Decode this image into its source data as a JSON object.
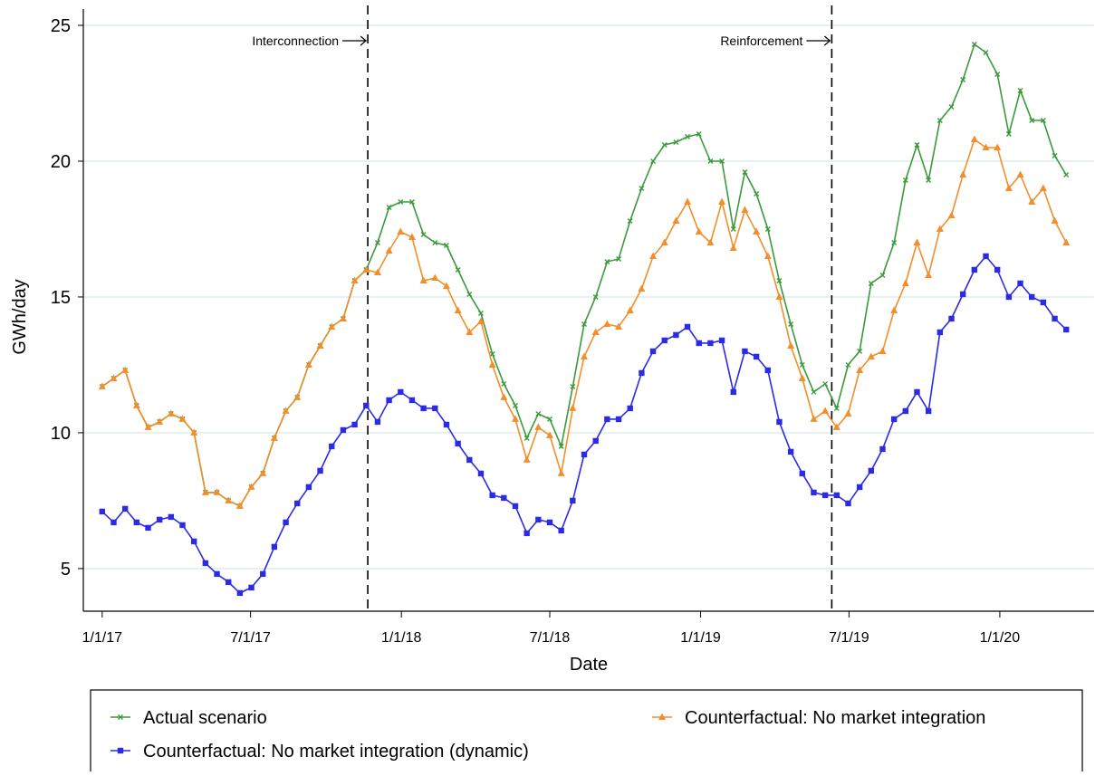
{
  "chart_data": {
    "type": "line",
    "x_label": "Date",
    "y_label": "GWh/day",
    "x": [
      "2017-01-01",
      "2017-01-15",
      "2017-01-29",
      "2017-02-12",
      "2017-02-26",
      "2017-03-12",
      "2017-03-26",
      "2017-04-09",
      "2017-04-23",
      "2017-05-07",
      "2017-05-21",
      "2017-06-04",
      "2017-06-18",
      "2017-07-02",
      "2017-07-16",
      "2017-07-30",
      "2017-08-13",
      "2017-08-27",
      "2017-09-10",
      "2017-09-24",
      "2017-10-08",
      "2017-10-22",
      "2017-11-05",
      "2017-11-19",
      "2017-12-03",
      "2017-12-17",
      "2017-12-31",
      "2018-01-14",
      "2018-01-28",
      "2018-02-11",
      "2018-02-25",
      "2018-03-11",
      "2018-03-25",
      "2018-04-08",
      "2018-04-22",
      "2018-05-06",
      "2018-05-20",
      "2018-06-03",
      "2018-06-17",
      "2018-07-01",
      "2018-07-15",
      "2018-07-29",
      "2018-08-12",
      "2018-08-26",
      "2018-09-09",
      "2018-09-23",
      "2018-10-07",
      "2018-10-21",
      "2018-11-04",
      "2018-11-18",
      "2018-12-02",
      "2018-12-16",
      "2018-12-30",
      "2019-01-13",
      "2019-01-27",
      "2019-02-10",
      "2019-02-24",
      "2019-03-10",
      "2019-03-24",
      "2019-04-07",
      "2019-04-21",
      "2019-05-05",
      "2019-05-19",
      "2019-06-02",
      "2019-06-16",
      "2019-06-30",
      "2019-07-14",
      "2019-07-28",
      "2019-08-11",
      "2019-08-25",
      "2019-09-08",
      "2019-09-22",
      "2019-10-06",
      "2019-10-20",
      "2019-11-03",
      "2019-11-17",
      "2019-12-01",
      "2019-12-15",
      "2019-12-29",
      "2020-01-12",
      "2020-01-26",
      "2020-02-09",
      "2020-02-23",
      "2020-03-08",
      "2020-03-22"
    ],
    "series": [
      {
        "name": "Actual scenario",
        "color": "#3a9a3a",
        "marker": "cross",
        "values": [
          11.7,
          12.0,
          12.3,
          11.0,
          10.2,
          10.4,
          10.7,
          10.5,
          10.0,
          7.8,
          7.8,
          7.5,
          7.3,
          8.0,
          8.5,
          9.8,
          10.8,
          11.3,
          12.5,
          13.2,
          13.9,
          14.2,
          15.6,
          16.0,
          17.0,
          18.3,
          18.5,
          18.5,
          17.3,
          17.0,
          16.9,
          16.0,
          15.1,
          14.4,
          12.9,
          11.8,
          11.0,
          9.8,
          10.7,
          10.5,
          9.5,
          11.7,
          14.0,
          15.0,
          16.3,
          16.4,
          17.8,
          19.0,
          20.0,
          20.6,
          20.7,
          20.9,
          21.0,
          20.0,
          20.0,
          17.5,
          19.6,
          18.8,
          17.5,
          15.6,
          14.0,
          12.5,
          11.5,
          11.8,
          10.9,
          12.5,
          13.0,
          15.5,
          15.8,
          17.0,
          19.3,
          20.6,
          19.3,
          21.5,
          22.0,
          23.0,
          24.3,
          24.0,
          23.2,
          21.0,
          22.6,
          21.5,
          21.5,
          20.2,
          19.5
        ]
      },
      {
        "name": "Counterfactual: No market integration",
        "color": "#f28e2b",
        "marker": "triangle",
        "values": [
          11.7,
          12.0,
          12.3,
          11.0,
          10.2,
          10.4,
          10.7,
          10.5,
          10.0,
          7.8,
          7.8,
          7.5,
          7.3,
          8.0,
          8.5,
          9.8,
          10.8,
          11.3,
          12.5,
          13.2,
          13.9,
          14.2,
          15.6,
          16.0,
          15.9,
          16.7,
          17.4,
          17.2,
          15.6,
          15.7,
          15.4,
          14.5,
          13.7,
          14.1,
          12.5,
          11.3,
          10.5,
          9.0,
          10.2,
          9.9,
          8.5,
          10.9,
          12.8,
          13.7,
          14.0,
          13.9,
          14.5,
          15.3,
          16.5,
          17.0,
          17.8,
          18.5,
          17.4,
          17.0,
          18.5,
          16.8,
          18.2,
          17.4,
          16.5,
          15.0,
          13.2,
          12.0,
          10.5,
          10.8,
          10.2,
          10.7,
          12.3,
          12.8,
          13.0,
          14.5,
          15.5,
          17.0,
          15.8,
          17.5,
          18.0,
          19.5,
          20.8,
          20.5,
          20.5,
          19.0,
          19.5,
          18.5,
          19.0,
          17.8,
          17.0
        ]
      },
      {
        "name": "Counterfactual: No market integration (dynamic)",
        "color": "#2b2be6",
        "marker": "square",
        "values": [
          7.1,
          6.7,
          7.2,
          6.7,
          6.5,
          6.8,
          6.9,
          6.6,
          6.0,
          5.2,
          4.8,
          4.5,
          4.1,
          4.3,
          4.8,
          5.8,
          6.7,
          7.4,
          8.0,
          8.6,
          9.5,
          10.1,
          10.3,
          11.0,
          10.4,
          11.2,
          11.5,
          11.2,
          10.9,
          10.9,
          10.3,
          9.6,
          9.0,
          8.5,
          7.7,
          7.6,
          7.3,
          6.3,
          6.8,
          6.7,
          6.4,
          7.5,
          9.2,
          9.7,
          10.5,
          10.5,
          10.9,
          12.2,
          13.0,
          13.4,
          13.6,
          13.9,
          13.3,
          13.3,
          13.4,
          11.5,
          13.0,
          12.8,
          12.3,
          10.4,
          9.3,
          8.5,
          7.8,
          7.7,
          7.7,
          7.4,
          8.0,
          8.6,
          9.4,
          10.5,
          10.8,
          11.5,
          10.8,
          13.7,
          14.2,
          15.1,
          16.0,
          16.5,
          16.0,
          15.0,
          15.5,
          15.0,
          14.8,
          14.2,
          13.8
        ]
      }
    ],
    "xlim": [
      "2016-12-09",
      "2020-04-25"
    ],
    "xticks": [
      {
        "value": "2017-01-01",
        "label": "1/1/17"
      },
      {
        "value": "2017-07-01",
        "label": "7/1/17"
      },
      {
        "value": "2018-01-01",
        "label": "1/1/18"
      },
      {
        "value": "2018-07-01",
        "label": "7/1/18"
      },
      {
        "value": "2019-01-01",
        "label": "1/1/19"
      },
      {
        "value": "2019-07-01",
        "label": "7/1/19"
      },
      {
        "value": "2020-01-01",
        "label": "1/1/20"
      }
    ],
    "ylim": [
      3.43,
      25.6
    ],
    "yticks": [
      5,
      10,
      15,
      20,
      25
    ],
    "grid": true,
    "legend": "bottom",
    "annotations": [
      {
        "text": "Interconnection",
        "x": "2017-11-21"
      },
      {
        "text": "Reinforcement",
        "x": "2019-06-10"
      }
    ]
  }
}
